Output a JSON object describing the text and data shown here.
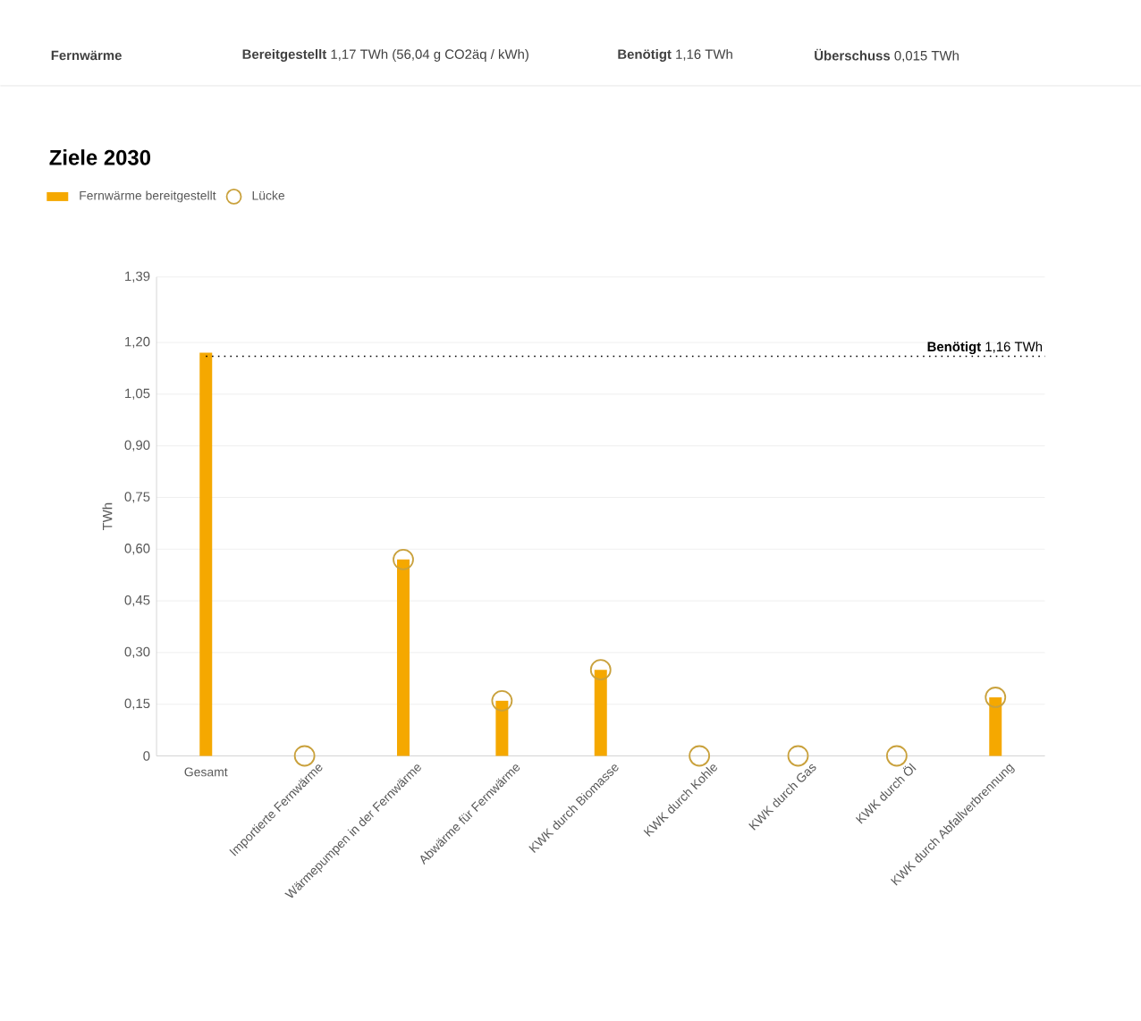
{
  "chart_data": {
    "type": "bar",
    "title": "Ziele 2030",
    "annotations": [
      "Fernwärme",
      "**Bereitgestellt** 1,17 TWh (56,04 g CO2äq / kWh)",
      "**Benötigt** 1,16 TWh",
      "**Überschuss** 0,015 TWh"
    ],
    "ylabel": "TWh",
    "categories": [
      "Gesamt",
      "Importierte Fernwärme",
      "Wärmepumpen in der Fernwärme",
      "Abwärme für Fernwärme",
      "KWK durch Biomasse",
      "KWK durch Kohle",
      "KWK durch Gas",
      "KWK durch Öl",
      "KWK durch Abfallverbrennung"
    ],
    "series": [
      {
        "name": "Fernwärme bereitgestellt",
        "color": "#f5a800",
        "values": [
          1.17,
          0,
          0.57,
          0.16,
          0.25,
          0,
          0,
          0,
          0.17
        ]
      },
      {
        "name": "Lücke",
        "type": "scatter",
        "color": "#c9a13c",
        "marker": "circle",
        "values": [
          null,
          0,
          0.57,
          0.16,
          0.25,
          0,
          0,
          0,
          0.17
        ]
      }
    ],
    "ylim": [
      0,
      1.39
    ],
    "yticks": [
      {
        "value": 0,
        "label": "0"
      },
      {
        "value": 0.15,
        "label": "0,15"
      },
      {
        "value": 0.3,
        "label": "0,30"
      },
      {
        "value": 0.45,
        "label": "0,45"
      },
      {
        "value": 0.6,
        "label": "0,60"
      },
      {
        "value": 0.75,
        "label": "0,75"
      },
      {
        "value": 0.9,
        "label": "0,90"
      },
      {
        "value": 1.05,
        "label": "1,05"
      },
      {
        "value": 1.2,
        "label": "1,20"
      },
      {
        "value": 1.39,
        "label": "1,39"
      }
    ],
    "ref_lines": [
      {
        "axis": "y",
        "value": 1.16,
        "label": "**Benötigt** 1,16 TWh",
        "color": "#000000",
        "line_style": "dotted"
      }
    ],
    "grid": "y",
    "legend": "top left"
  }
}
